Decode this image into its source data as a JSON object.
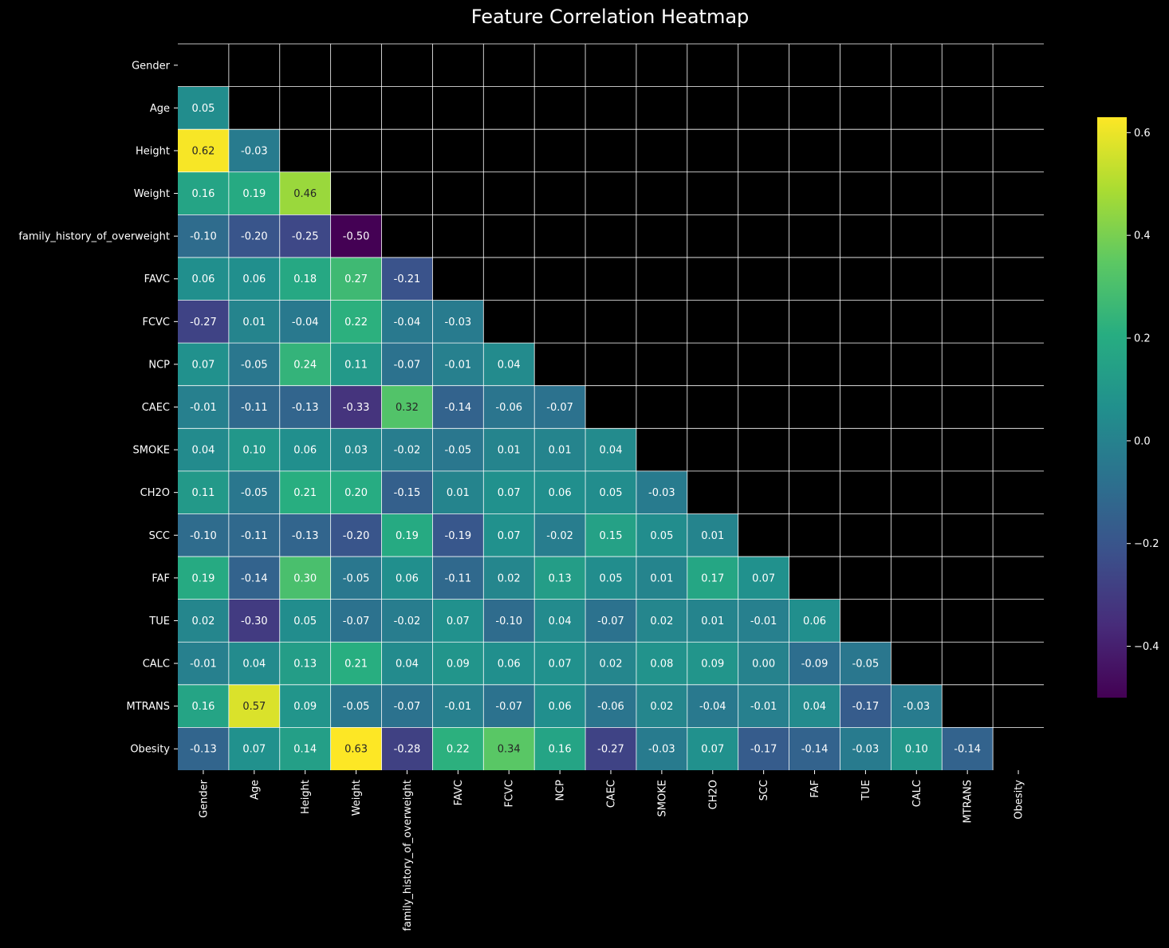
{
  "chart_data": {
    "type": "heatmap",
    "title": "Feature Correlation Heatmap",
    "labels": [
      "Gender",
      "Age",
      "Height",
      "Weight",
      "family_history_of_overweight",
      "FAVC",
      "FCVC",
      "NCP",
      "CAEC",
      "SMOKE",
      "CH2O",
      "SCC",
      "FAF",
      "TUE",
      "CALC",
      "MTRANS",
      "Obesity"
    ],
    "mask": "upper-triangle-including-diagonal",
    "values": [
      [],
      [
        0.05
      ],
      [
        0.62,
        -0.03
      ],
      [
        0.16,
        0.19,
        0.46
      ],
      [
        -0.1,
        -0.2,
        -0.25,
        -0.5
      ],
      [
        0.06,
        0.06,
        0.18,
        0.27,
        -0.21
      ],
      [
        -0.27,
        0.01,
        -0.04,
        0.22,
        -0.04,
        -0.03
      ],
      [
        0.07,
        -0.05,
        0.24,
        0.11,
        -0.07,
        -0.01,
        0.04
      ],
      [
        -0.01,
        -0.11,
        -0.13,
        -0.33,
        0.32,
        -0.14,
        -0.06,
        -0.07
      ],
      [
        0.04,
        0.1,
        0.06,
        0.03,
        -0.02,
        -0.05,
        0.01,
        0.01,
        0.04
      ],
      [
        0.11,
        -0.05,
        0.21,
        0.2,
        -0.15,
        0.01,
        0.07,
        0.06,
        0.05,
        -0.03
      ],
      [
        -0.1,
        -0.11,
        -0.13,
        -0.2,
        0.19,
        -0.19,
        0.07,
        -0.02,
        0.15,
        0.05,
        0.01
      ],
      [
        0.19,
        -0.14,
        0.3,
        -0.05,
        0.06,
        -0.11,
        0.02,
        0.13,
        0.05,
        0.01,
        0.17,
        0.07
      ],
      [
        0.02,
        -0.3,
        0.05,
        -0.07,
        -0.02,
        0.07,
        -0.1,
        0.04,
        -0.07,
        0.02,
        0.01,
        -0.01,
        0.06
      ],
      [
        -0.01,
        0.04,
        0.13,
        0.21,
        0.04,
        0.09,
        0.06,
        0.07,
        0.02,
        0.08,
        0.09,
        0.0,
        -0.09,
        -0.05
      ],
      [
        0.16,
        0.57,
        0.09,
        -0.05,
        -0.07,
        -0.01,
        -0.07,
        0.06,
        -0.06,
        0.02,
        -0.04,
        -0.01,
        0.04,
        -0.17,
        -0.03
      ],
      [
        -0.13,
        0.07,
        0.14,
        0.63,
        -0.28,
        0.22,
        0.34,
        0.16,
        -0.27,
        -0.03,
        0.07,
        -0.17,
        -0.14,
        -0.03,
        0.1,
        -0.14
      ]
    ],
    "colormap": "viridis",
    "vmin": -0.5,
    "vmax": 0.63,
    "colorbar_ticks": [
      {
        "value": 0.6,
        "label": "0.6"
      },
      {
        "value": 0.4,
        "label": "0.4"
      },
      {
        "value": 0.2,
        "label": "0.2"
      },
      {
        "value": 0.0,
        "label": "0.0"
      },
      {
        "value": -0.2,
        "label": "−0.2"
      },
      {
        "value": -0.4,
        "label": "−0.4"
      }
    ],
    "colorbar": true,
    "grid_color": "#ffffff",
    "background": "#000000"
  }
}
